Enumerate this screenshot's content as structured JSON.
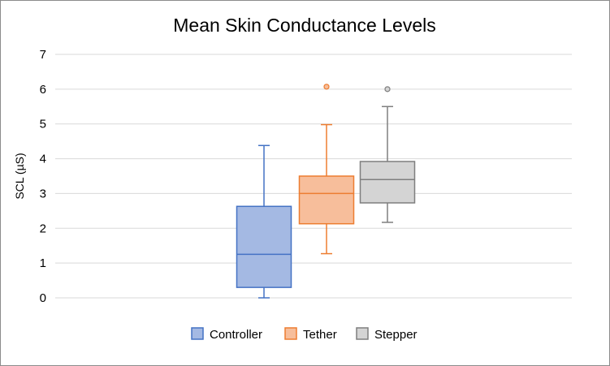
{
  "chart_data": {
    "type": "box",
    "title": "Mean Skin Conductance Levels",
    "xlabel": "",
    "ylabel": "SCL (µS)",
    "ylim": [
      0,
      7
    ],
    "yticks": [
      "0",
      "1",
      "2",
      "3",
      "4",
      "5",
      "6",
      "7"
    ],
    "grid": true,
    "legend_position": "bottom",
    "series": [
      {
        "name": "Controller",
        "color": "#4472c4",
        "fill": "#a4b9e3",
        "min": 0.0,
        "q1": 0.3,
        "median": 1.25,
        "q3": 2.63,
        "max": 4.38,
        "outliers": []
      },
      {
        "name": "Tether",
        "color": "#ed7d31",
        "fill": "#f7be9b",
        "min": 1.27,
        "q1": 2.13,
        "median": 3.0,
        "q3": 3.5,
        "max": 4.98,
        "outliers": [
          6.07
        ]
      },
      {
        "name": "Stepper",
        "color": "#7f7f7f",
        "fill": "#d4d4d4",
        "min": 2.17,
        "q1": 2.73,
        "median": 3.4,
        "q3": 3.92,
        "max": 5.5,
        "outliers": [
          6.0
        ]
      }
    ]
  }
}
